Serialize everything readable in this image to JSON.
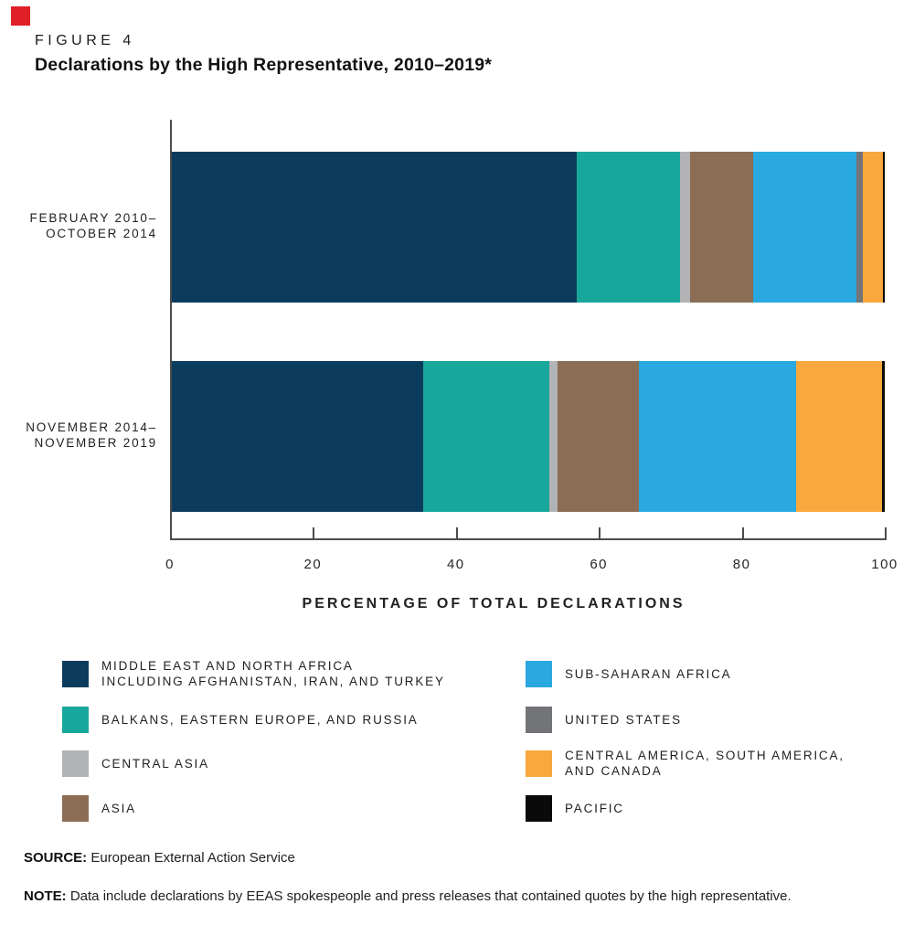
{
  "brand": {
    "accent_color": "#e01f26"
  },
  "figure": {
    "eyebrow": "FIGURE 4",
    "title": "Declarations by the High Representative, 2010–2019*"
  },
  "chart_data": {
    "type": "bar",
    "stacked": true,
    "orientation": "horizontal",
    "categories": [
      "FEBRUARY 2010–OCTOBER 2014",
      "NOVEMBER 2014–NOVEMBER 2019"
    ],
    "series": [
      {
        "name": "MIDDLE EAST AND NORTH AFRICA INCLUDING AFGHANISTAN, IRAN, AND TURKEY",
        "color": "#0c3c5d",
        "values": [
          56.8,
          35.2
        ]
      },
      {
        "name": "BALKANS, EASTERN EUROPE, AND RUSSIA",
        "color": "#17a79b",
        "values": [
          14.5,
          17.7
        ]
      },
      {
        "name": "CENTRAL ASIA",
        "color": "#b1b3b5",
        "values": [
          1.4,
          1.2
        ]
      },
      {
        "name": "ASIA",
        "color": "#8a6d54",
        "values": [
          8.8,
          11.4
        ]
      },
      {
        "name": "SUB-SAHARAN AFRICA",
        "color": "#29a9e0",
        "values": [
          14.5,
          22.1
        ]
      },
      {
        "name": "UNITED STATES",
        "color": "#737477",
        "values": [
          0.9,
          0
        ]
      },
      {
        "name": "CENTRAL AMERICA, SOUTH AMERICA, AND CANADA",
        "color": "#f8a83d",
        "values": [
          2.8,
          12.0
        ]
      },
      {
        "name": "PACIFIC",
        "color": "#0a0a0a",
        "values": [
          0.3,
          0.4
        ]
      }
    ],
    "xlabel": "PERCENTAGE OF TOTAL DECLARATIONS",
    "x_ticks": [
      0,
      20,
      40,
      60,
      80,
      100
    ],
    "xlim": [
      0,
      100
    ],
    "grid": false,
    "legend_position": "bottom"
  },
  "row_labels": [
    [
      "FEBRUARY 2010–",
      "OCTOBER 2014"
    ],
    [
      "NOVEMBER 2014–",
      "NOVEMBER 2019"
    ]
  ],
  "legend": {
    "items": [
      {
        "series": 0,
        "column": 0,
        "row": 0,
        "lines": [
          "MIDDLE EAST AND NORTH AFRICA",
          "INCLUDING AFGHANISTAN, IRAN, AND TURKEY"
        ]
      },
      {
        "series": 1,
        "column": 0,
        "row": 1,
        "lines": [
          "BALKANS, EASTERN EUROPE, AND RUSSIA"
        ]
      },
      {
        "series": 2,
        "column": 0,
        "row": 2,
        "lines": [
          "CENTRAL ASIA"
        ]
      },
      {
        "series": 3,
        "column": 0,
        "row": 3,
        "lines": [
          "ASIA"
        ]
      },
      {
        "series": 4,
        "column": 1,
        "row": 0,
        "lines": [
          "SUB-SAHARAN AFRICA"
        ]
      },
      {
        "series": 5,
        "column": 1,
        "row": 1,
        "lines": [
          "UNITED STATES"
        ]
      },
      {
        "series": 6,
        "column": 1,
        "row": 2,
        "lines": [
          "CENTRAL AMERICA, SOUTH AMERICA,",
          "AND CANADA"
        ]
      },
      {
        "series": 7,
        "column": 1,
        "row": 3,
        "lines": [
          "PACIFIC"
        ]
      }
    ]
  },
  "source": {
    "label": "SOURCE:",
    "text": "European External Action Service"
  },
  "note": {
    "label": "NOTE:",
    "text": "Data include declarations by EEAS spokespeople and press releases that contained quotes by the high representative."
  }
}
